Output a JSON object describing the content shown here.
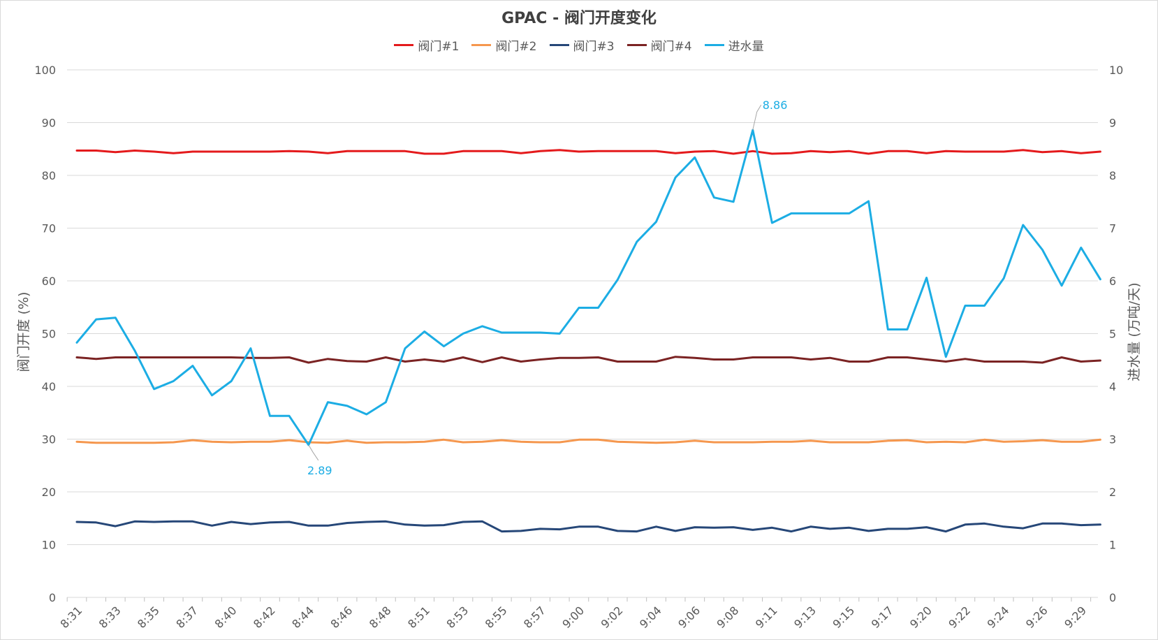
{
  "chart_data": {
    "type": "line",
    "title": "GPAC - 阀门开度变化",
    "ylabel": "阀门开度 (%)",
    "y2label": "进水量 (万吨/天)",
    "ylim": [
      0,
      100
    ],
    "y2lim": [
      0,
      10
    ],
    "yticks": [
      "0",
      "10",
      "20",
      "30",
      "40",
      "50",
      "60",
      "70",
      "80",
      "90",
      "100"
    ],
    "y2ticks": [
      "0",
      "1",
      "2",
      "3",
      "4",
      "5",
      "6",
      "7",
      "8",
      "9",
      "10"
    ],
    "xticklabels": [
      "8:31",
      "8:33",
      "8:35",
      "8:37",
      "8:40",
      "8:42",
      "8:44",
      "8:46",
      "8:48",
      "8:51",
      "8:53",
      "8:55",
      "8:57",
      "9:00",
      "9:02",
      "9:04",
      "9:06",
      "9:08",
      "9:11",
      "9:13",
      "9:15",
      "9:17",
      "9:20",
      "9:22",
      "9:24",
      "9:26",
      "9:29"
    ],
    "legend_position": "top",
    "grid": true,
    "series": [
      {
        "name": "阀门#1",
        "axis": "left",
        "color": "#e41a1c",
        "values": [
          84.7,
          84.7,
          84.4,
          84.7,
          84.5,
          84.2,
          84.5,
          84.5,
          84.5,
          84.5,
          84.5,
          84.6,
          84.5,
          84.2,
          84.6,
          84.6,
          84.6,
          84.6,
          84.1,
          84.1,
          84.6,
          84.6,
          84.6,
          84.2,
          84.6,
          84.8,
          84.5,
          84.6,
          84.6,
          84.6,
          84.6,
          84.2,
          84.5,
          84.6,
          84.1,
          84.6,
          84.1,
          84.2,
          84.6,
          84.4,
          84.6,
          84.1,
          84.6,
          84.6,
          84.2,
          84.6,
          84.5,
          84.5,
          84.5,
          84.8,
          84.4,
          84.6,
          84.2,
          84.5
        ]
      },
      {
        "name": "阀门#2",
        "axis": "left",
        "color": "#f5974e",
        "values": [
          29.5,
          29.3,
          29.3,
          29.3,
          29.3,
          29.4,
          29.8,
          29.5,
          29.4,
          29.5,
          29.5,
          29.8,
          29.4,
          29.3,
          29.7,
          29.3,
          29.4,
          29.4,
          29.5,
          29.9,
          29.4,
          29.5,
          29.8,
          29.5,
          29.4,
          29.4,
          29.9,
          29.9,
          29.5,
          29.4,
          29.3,
          29.4,
          29.7,
          29.4,
          29.4,
          29.4,
          29.5,
          29.5,
          29.7,
          29.4,
          29.4,
          29.4,
          29.7,
          29.8,
          29.4,
          29.5,
          29.4,
          29.9,
          29.5,
          29.6,
          29.8,
          29.5,
          29.5,
          29.9
        ]
      },
      {
        "name": "阀门#3",
        "axis": "left",
        "color": "#264778",
        "values": [
          14.3,
          14.2,
          13.5,
          14.4,
          14.3,
          14.4,
          14.4,
          13.6,
          14.3,
          13.9,
          14.2,
          14.3,
          13.6,
          13.6,
          14.1,
          14.3,
          14.4,
          13.8,
          13.6,
          13.7,
          14.3,
          14.4,
          12.5,
          12.6,
          13.0,
          12.9,
          13.4,
          13.4,
          12.6,
          12.5,
          13.4,
          12.6,
          13.3,
          13.2,
          13.3,
          12.8,
          13.2,
          12.5,
          13.4,
          13.0,
          13.2,
          12.6,
          13.0,
          13.0,
          13.3,
          12.5,
          13.8,
          14.0,
          13.4,
          13.1,
          14.0,
          14.0,
          13.7,
          13.8
        ]
      },
      {
        "name": "阀门#4",
        "axis": "left",
        "color": "#7b2323",
        "values": [
          45.5,
          45.2,
          45.5,
          45.5,
          45.5,
          45.5,
          45.5,
          45.5,
          45.5,
          45.4,
          45.4,
          45.5,
          44.5,
          45.2,
          44.8,
          44.7,
          45.5,
          44.7,
          45.1,
          44.7,
          45.5,
          44.6,
          45.5,
          44.7,
          45.1,
          45.4,
          45.4,
          45.5,
          44.7,
          44.7,
          44.7,
          45.6,
          45.4,
          45.1,
          45.1,
          45.5,
          45.5,
          45.5,
          45.1,
          45.4,
          44.7,
          44.7,
          45.5,
          45.5,
          45.1,
          44.7,
          45.2,
          44.7,
          44.7,
          44.7,
          44.5,
          45.5,
          44.7,
          44.9
        ]
      },
      {
        "name": "进水量",
        "axis": "right",
        "color": "#1cade4",
        "values": [
          4.83,
          5.27,
          5.3,
          4.68,
          3.95,
          4.1,
          4.39,
          3.83,
          4.1,
          4.72,
          3.44,
          3.44,
          2.89,
          3.7,
          3.63,
          3.47,
          3.7,
          4.72,
          5.04,
          4.76,
          5.0,
          5.14,
          5.02,
          5.02,
          5.02,
          5.0,
          5.49,
          5.49,
          6.02,
          6.74,
          7.12,
          7.96,
          8.34,
          7.58,
          7.5,
          8.86,
          7.1,
          7.28,
          7.28,
          7.28,
          7.28,
          7.51,
          5.08,
          5.08,
          6.06,
          4.56,
          5.53,
          5.53,
          6.05,
          7.06,
          6.59,
          5.91,
          6.63,
          6.03
        ],
        "annotations": [
          {
            "index": 12,
            "label": "2.89"
          },
          {
            "index": 35,
            "label": "8.86"
          }
        ]
      }
    ]
  }
}
